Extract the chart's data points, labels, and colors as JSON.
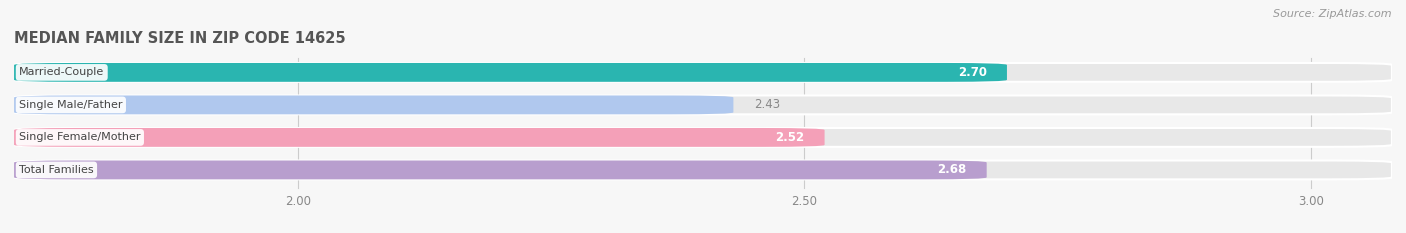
{
  "title": "MEDIAN FAMILY SIZE IN ZIP CODE 14625",
  "source": "Source: ZipAtlas.com",
  "categories": [
    "Married-Couple",
    "Single Male/Father",
    "Single Female/Mother",
    "Total Families"
  ],
  "values": [
    2.7,
    2.43,
    2.52,
    2.68
  ],
  "colors": [
    "#2ab5b0",
    "#b0c8ee",
    "#f4a0b8",
    "#b89ece"
  ],
  "bar_bg_color": "#e8e8e8",
  "bar_outline_color": "#ffffff",
  "xlim_left": 1.72,
  "xlim_right": 3.08,
  "xticks": [
    2.0,
    2.5,
    3.0
  ],
  "xtick_labels": [
    "2.00",
    "2.50",
    "3.00"
  ],
  "title_color": "#555555",
  "label_color": "#555555",
  "source_color": "#999999",
  "background_color": "#f7f7f7",
  "bar_height": 0.58,
  "value_inside_color": "#ffffff",
  "value_outside_color": "#888888",
  "value_inside_threshold": 0.55
}
